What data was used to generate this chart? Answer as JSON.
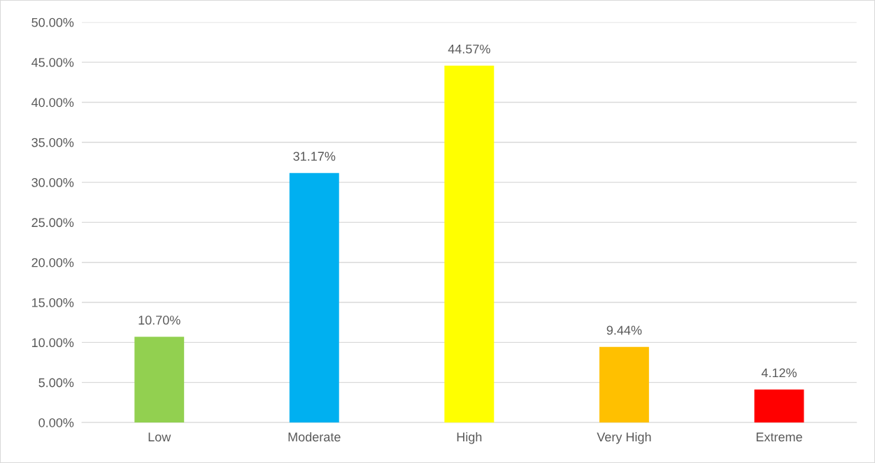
{
  "chart_data": {
    "type": "bar",
    "categories": [
      "Low",
      "Moderate",
      "High",
      "Very High",
      "Extreme"
    ],
    "values": [
      10.7,
      31.17,
      44.57,
      9.44,
      4.12
    ],
    "colors": [
      "#92d050",
      "#00b0f0",
      "#ffff00",
      "#ffc000",
      "#ff0000"
    ],
    "value_labels": [
      "10.70%",
      "31.17%",
      "44.57%",
      "9.44%",
      "4.12%"
    ],
    "ylim": [
      0,
      50
    ],
    "yticks": [
      {
        "value": 0,
        "label": "0.00%"
      },
      {
        "value": 5,
        "label": "5.00%"
      },
      {
        "value": 10,
        "label": "10.00%"
      },
      {
        "value": 15,
        "label": "15.00%"
      },
      {
        "value": 20,
        "label": "20.00%"
      },
      {
        "value": 25,
        "label": "25.00%"
      },
      {
        "value": 30,
        "label": "30.00%"
      },
      {
        "value": 35,
        "label": "35.00%"
      },
      {
        "value": 40,
        "label": "40.00%"
      },
      {
        "value": 45,
        "label": "45.00%"
      },
      {
        "value": 50,
        "label": "50.00%"
      }
    ],
    "grid": "y"
  }
}
